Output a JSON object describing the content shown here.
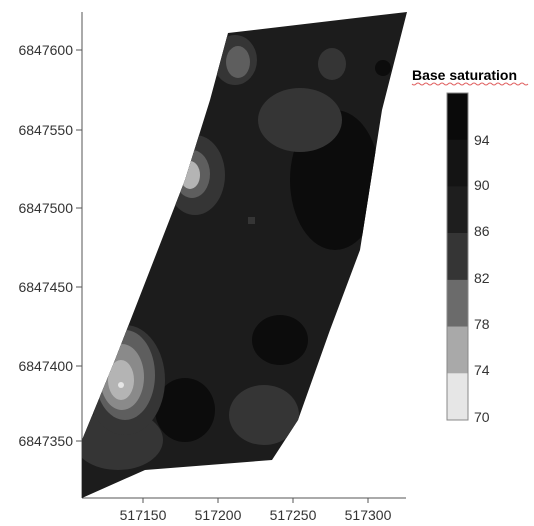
{
  "map": {
    "legend": {
      "title": "Base saturation",
      "labels": [
        "94",
        "90",
        "86",
        "82",
        "78",
        "74",
        "70"
      ],
      "class_colors": [
        "#0a0a0a",
        "#141414",
        "#1e1e1e",
        "#353535",
        "#6b6b6b",
        "#a9a9a9",
        "#e6e6e6"
      ],
      "title_underline_color": "#e06060"
    },
    "y_axis_ticks": [
      "6847600",
      "6847550",
      "6847500",
      "6847450",
      "6847400",
      "6847350"
    ],
    "x_axis_ticks": [
      "517150",
      "517200",
      "517250",
      "517300"
    ],
    "field_colors": {
      "base": "#1c1c1c",
      "dark": "#0c0c0c",
      "mid": "#353535",
      "light": "#5e5e5e",
      "lighter": "#8a8a8a",
      "lightest": "#b4b4b4",
      "brightest": "#e6e6e6"
    }
  }
}
